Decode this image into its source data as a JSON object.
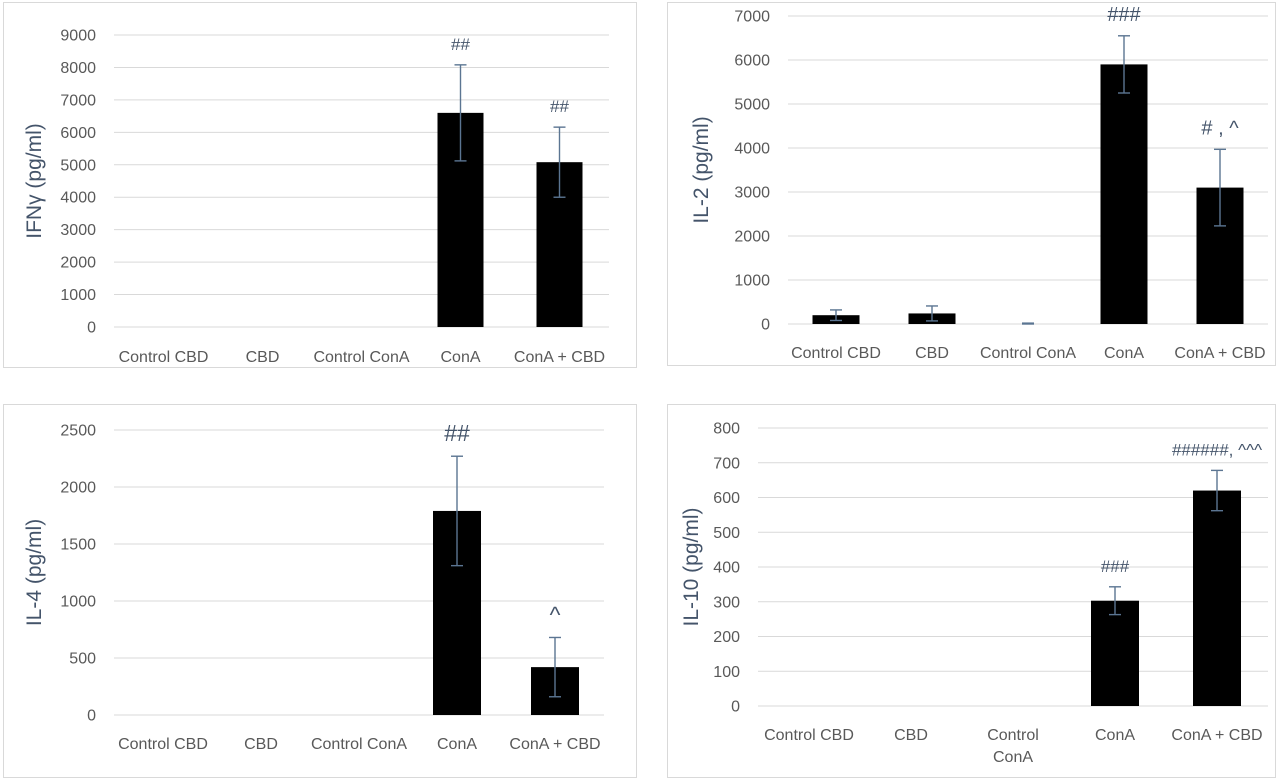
{
  "colors": {
    "bar": "#000000",
    "error_bar": "#5b7592",
    "grid": "#d9d9d9",
    "text": "#595959",
    "label": "#44546a"
  },
  "chart_data": [
    {
      "type": "bar",
      "ylabel": "IFNγ (pg/ml)",
      "categories": [
        "Control CBD",
        "CBD",
        "Control ConA",
        "ConA",
        "ConA + CBD"
      ],
      "values": [
        0,
        0,
        0,
        6600,
        5080
      ],
      "errors": [
        0,
        0,
        0,
        1480,
        1080
      ],
      "annotations": [
        "",
        "",
        "",
        "##",
        "##"
      ],
      "ylim": [
        0,
        9000
      ],
      "yticks": [
        0,
        1000,
        2000,
        3000,
        4000,
        5000,
        6000,
        7000,
        8000,
        9000
      ],
      "grid": true
    },
    {
      "type": "bar",
      "ylabel": "IL-2 (pg/ml)",
      "categories": [
        "Control CBD",
        "CBD",
        "Control ConA",
        "ConA",
        "ConA + CBD"
      ],
      "values": [
        200,
        240,
        0,
        5900,
        3100
      ],
      "errors": [
        120,
        170,
        20,
        650,
        870
      ],
      "annotations": [
        "",
        "",
        "",
        "###",
        "# , ^"
      ],
      "ylim": [
        0,
        7000
      ],
      "yticks": [
        0,
        1000,
        2000,
        3000,
        4000,
        5000,
        6000,
        7000
      ],
      "grid": true
    },
    {
      "type": "bar",
      "ylabel": "IL-4 (pg/ml)",
      "categories": [
        "Control CBD",
        "CBD",
        "Control ConA",
        "ConA",
        "ConA + CBD"
      ],
      "values": [
        0,
        0,
        0,
        1790,
        420
      ],
      "errors": [
        0,
        0,
        0,
        480,
        260
      ],
      "annotations": [
        "",
        "",
        "",
        "##",
        "^"
      ],
      "ylim": [
        0,
        2500
      ],
      "yticks": [
        0,
        500,
        1000,
        1500,
        2000,
        2500
      ],
      "grid": true
    },
    {
      "type": "bar",
      "ylabel": "IL-10 (pg/ml)",
      "categories": [
        "Control CBD",
        "CBD",
        "Control\nConA",
        "ConA",
        "ConA + CBD"
      ],
      "values": [
        0,
        0,
        0,
        303,
        620
      ],
      "errors": [
        0,
        0,
        0,
        40,
        58
      ],
      "annotations": [
        "",
        "",
        "",
        "###",
        "######, ^^^"
      ],
      "ylim": [
        0,
        800
      ],
      "yticks": [
        0,
        100,
        200,
        300,
        400,
        500,
        600,
        700,
        800
      ],
      "grid": true
    }
  ]
}
